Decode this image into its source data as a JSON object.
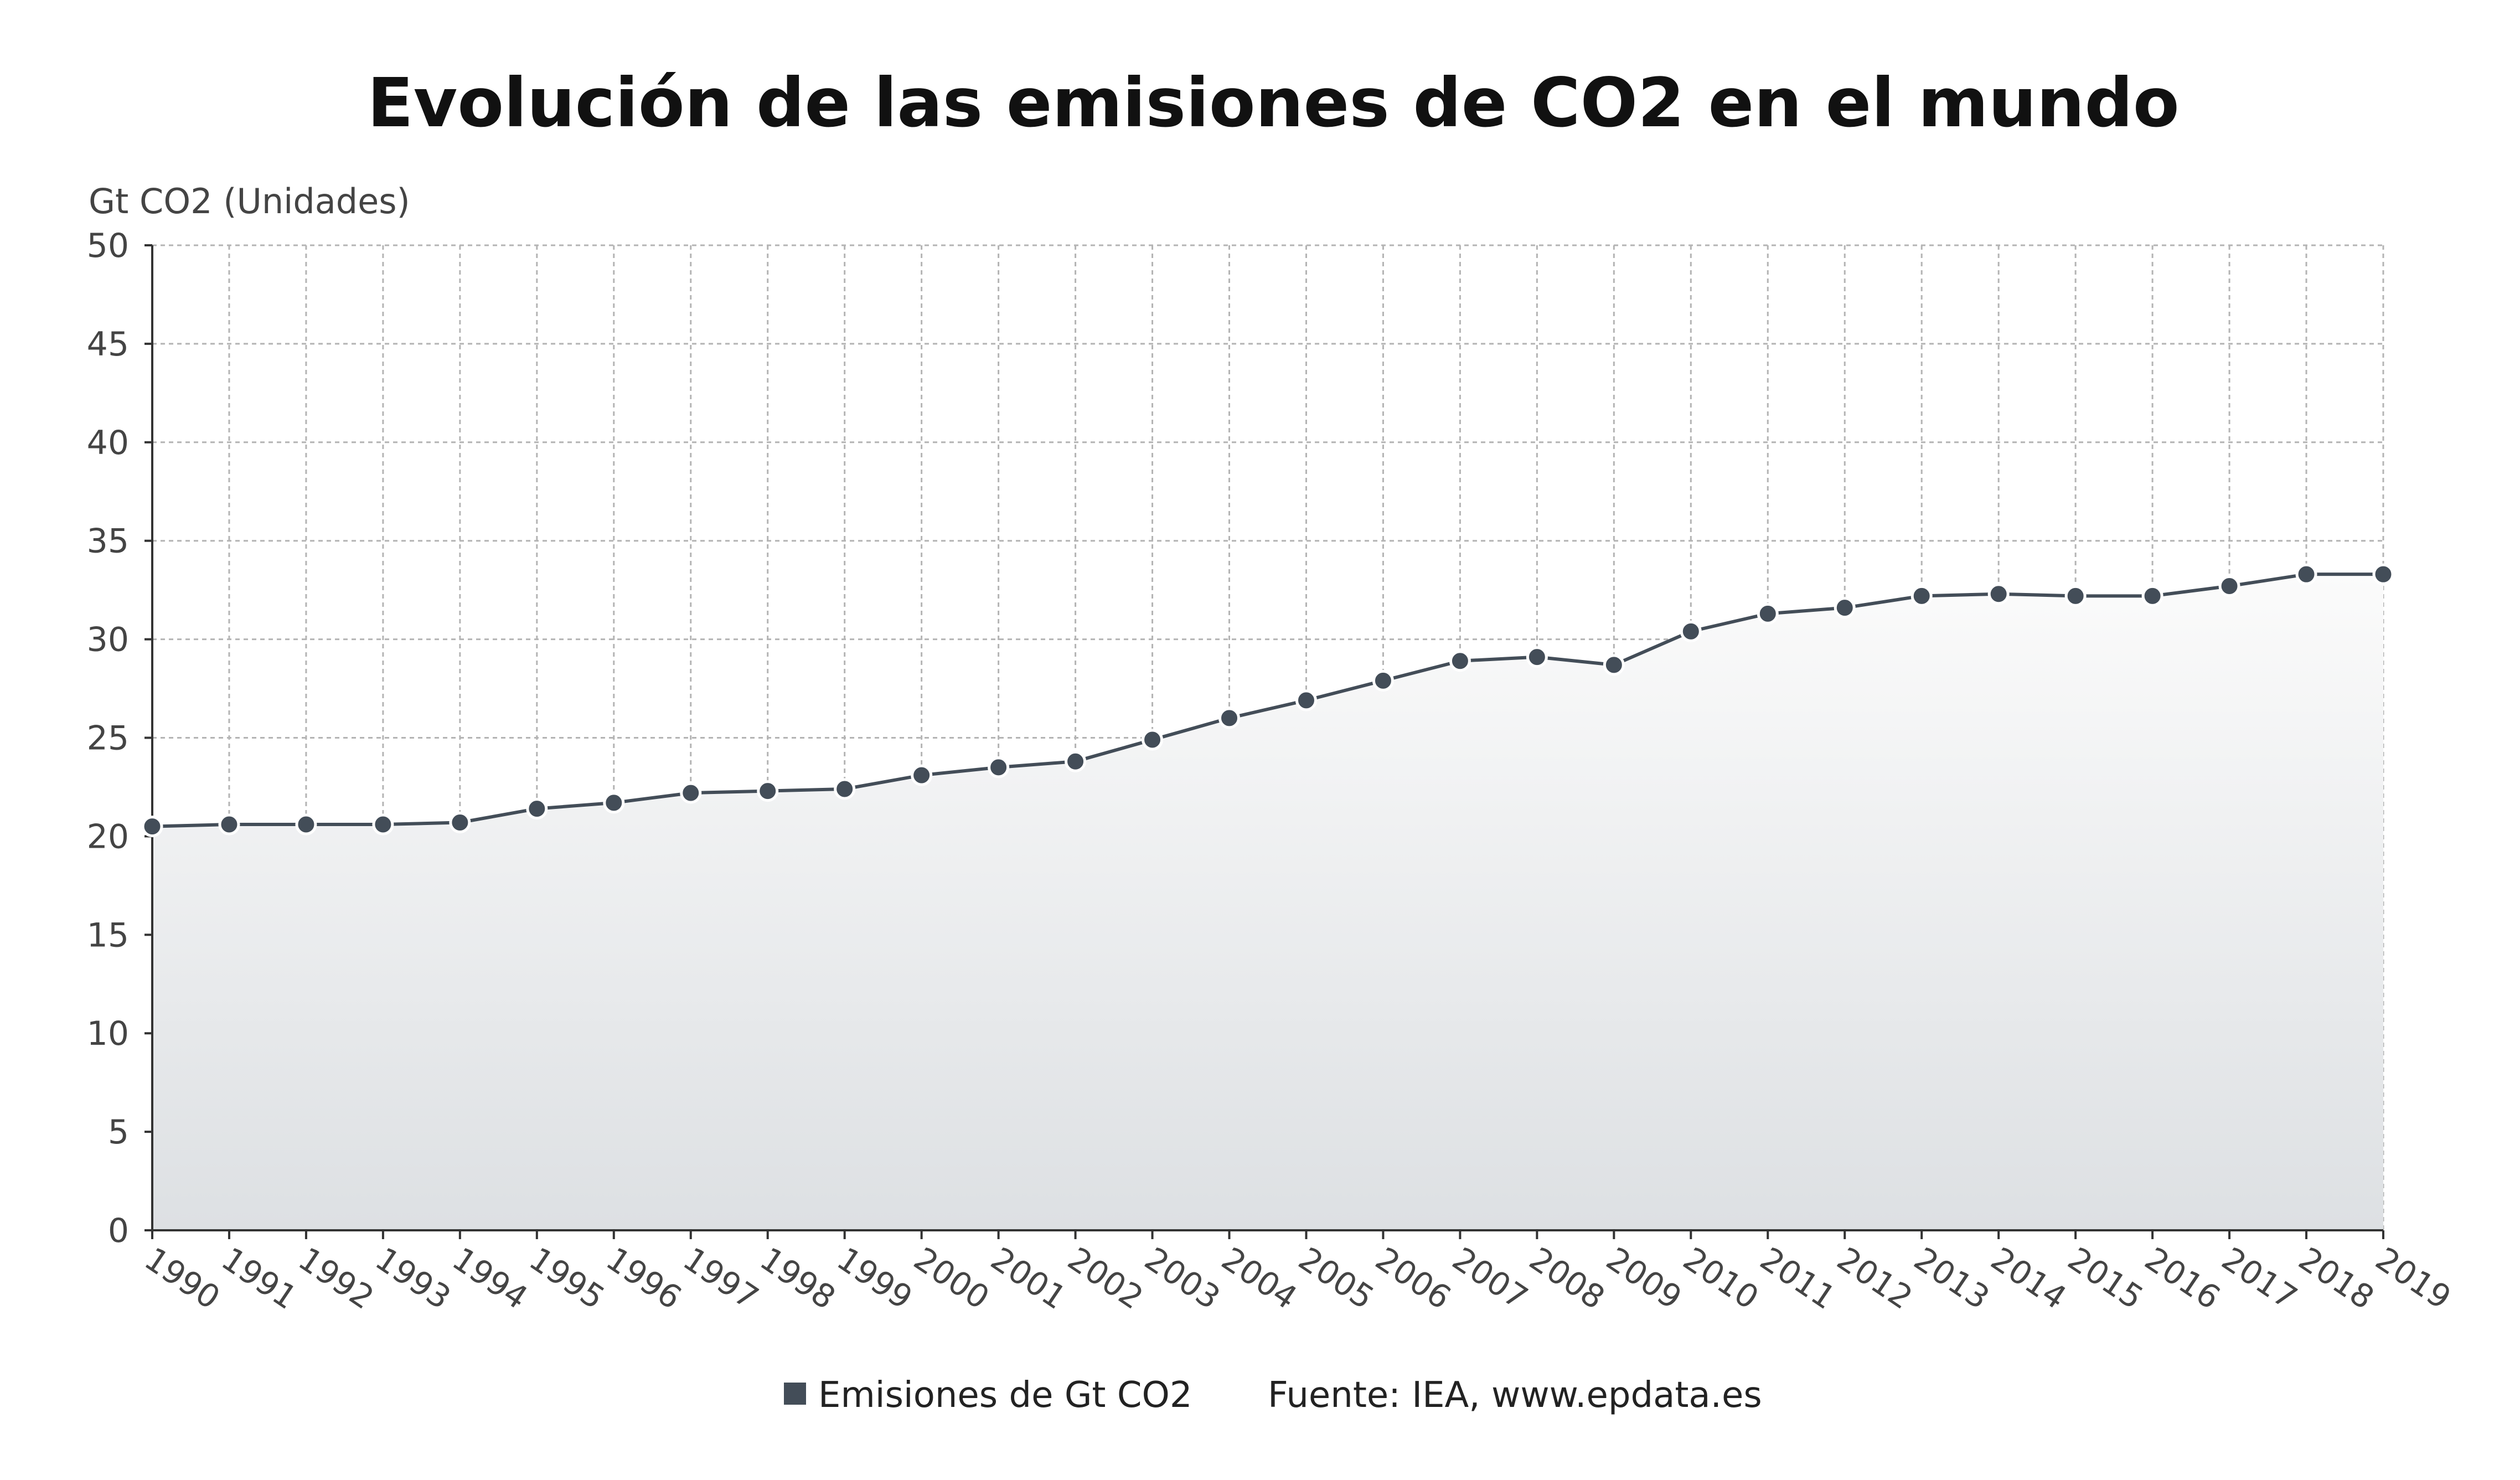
{
  "source_text": "Fuente: IEA, www.epdata.es",
  "colors": {
    "series": "#434d58",
    "area_top": "#fbfbfb",
    "area_bottom": "#dde0e3",
    "grid": "#b4b4b4",
    "text": "#444444"
  },
  "chart_data": {
    "type": "area",
    "title": "Evolución de las emisiones de CO2 en el mundo",
    "ylabel": "Gt CO2 (Unidades)",
    "xlabel": "",
    "ylim": [
      0,
      50
    ],
    "yticks": [
      "0",
      "5",
      "10",
      "15",
      "20",
      "25",
      "30",
      "35",
      "40",
      "45",
      "50"
    ],
    "grid": true,
    "legend_position": "bottom",
    "categories": [
      "1990",
      "1991",
      "1992",
      "1993",
      "1994",
      "1995",
      "1996",
      "1997",
      "1998",
      "1999",
      "2000",
      "2001",
      "2002",
      "2003",
      "2004",
      "2005",
      "2006",
      "2007",
      "2008",
      "2009",
      "2010",
      "2011",
      "2012",
      "2013",
      "2014",
      "2015",
      "2016",
      "2017",
      "2018",
      "2019"
    ],
    "series": [
      {
        "name": "Emisiones de Gt CO2",
        "values": [
          20.5,
          20.6,
          20.6,
          20.6,
          20.7,
          21.4,
          21.7,
          22.2,
          22.3,
          22.4,
          23.1,
          23.5,
          23.8,
          24.9,
          26.0,
          26.9,
          27.9,
          28.9,
          29.1,
          28.7,
          30.4,
          31.3,
          31.6,
          32.2,
          32.3,
          32.2,
          32.2,
          32.7,
          33.3,
          33.3
        ]
      }
    ]
  }
}
